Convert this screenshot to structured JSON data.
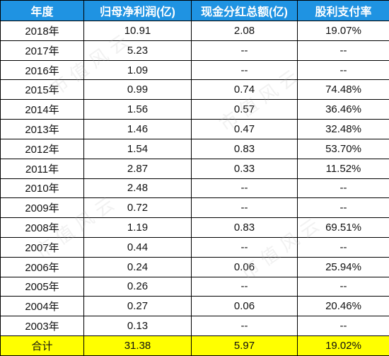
{
  "headers": {
    "year": "年度",
    "net_profit": "归母净利润(亿)",
    "dividend": "现金分红总额(亿)",
    "payout": "股利支付率"
  },
  "rows": [
    {
      "year": "2018年",
      "net_profit": "10.91",
      "dividend": "2.08",
      "payout": "19.07%"
    },
    {
      "year": "2017年",
      "net_profit": "5.23",
      "dividend": "--",
      "payout": "--"
    },
    {
      "year": "2016年",
      "net_profit": "1.09",
      "dividend": "--",
      "payout": "--"
    },
    {
      "year": "2015年",
      "net_profit": "0.99",
      "dividend": "0.74",
      "payout": "74.48%"
    },
    {
      "year": "2014年",
      "net_profit": "1.56",
      "dividend": "0.57",
      "payout": "36.46%"
    },
    {
      "year": "2013年",
      "net_profit": "1.46",
      "dividend": "0.47",
      "payout": "32.48%"
    },
    {
      "year": "2012年",
      "net_profit": "1.54",
      "dividend": "0.83",
      "payout": "53.70%"
    },
    {
      "year": "2011年",
      "net_profit": "2.87",
      "dividend": "0.33",
      "payout": "11.52%"
    },
    {
      "year": "2010年",
      "net_profit": "2.48",
      "dividend": "--",
      "payout": "--"
    },
    {
      "year": "2009年",
      "net_profit": "0.72",
      "dividend": "--",
      "payout": "--"
    },
    {
      "year": "2008年",
      "net_profit": "1.19",
      "dividend": "0.83",
      "payout": "69.51%"
    },
    {
      "year": "2007年",
      "net_profit": "0.44",
      "dividend": "--",
      "payout": "--"
    },
    {
      "year": "2006年",
      "net_profit": "0.24",
      "dividend": "0.06",
      "payout": "25.94%"
    },
    {
      "year": "2005年",
      "net_profit": "0.26",
      "dividend": "--",
      "payout": "--"
    },
    {
      "year": "2004年",
      "net_profit": "0.27",
      "dividend": "0.06",
      "payout": "20.46%"
    },
    {
      "year": "2003年",
      "net_profit": "0.13",
      "dividend": "--",
      "payout": "--"
    }
  ],
  "total": {
    "label": "合计",
    "net_profit": "31.38",
    "dividend": "5.97",
    "payout": "19.02%"
  },
  "watermark_text": "市值风云",
  "colors": {
    "header_bg": "#1f93e2",
    "total_bg": "#ffff00"
  }
}
